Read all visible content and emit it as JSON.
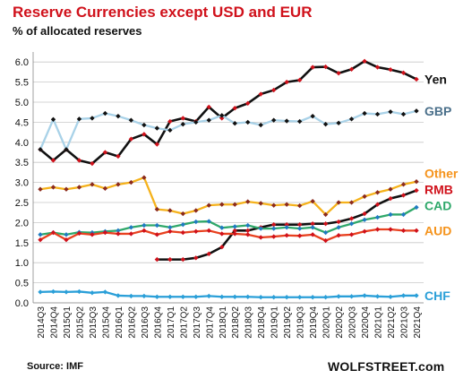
{
  "chart_data": {
    "type": "line",
    "title": "Reserve Currencies except USD and EUR",
    "subtitle": "% of allocated reserves",
    "source": "Source: IMF",
    "brand": "WOLFSTREET.com",
    "ylim": [
      0,
      6.25
    ],
    "yticks": [
      "0.0",
      "0.5",
      "1.0",
      "1.5",
      "2.0",
      "2.5",
      "3.0",
      "3.5",
      "4.0",
      "4.5",
      "5.0",
      "5.5",
      "6.0"
    ],
    "grid": true,
    "x": [
      "2014Q3",
      "2014Q4",
      "2015Q1",
      "2015Q2",
      "2015Q3",
      "2015Q4",
      "2016Q1",
      "2016Q2",
      "2016Q3",
      "2016Q4",
      "2017Q1",
      "2017Q2",
      "2017Q3",
      "2017Q4",
      "2018Q1",
      "2018Q2",
      "2018Q3",
      "2018Q4",
      "2019Q1",
      "2019Q2",
      "2019Q3",
      "2019Q4",
      "2020Q1",
      "2020Q2",
      "2020Q3",
      "2020Q4",
      "2021Q1",
      "2021Q2",
      "2021Q3",
      "2021Q4"
    ],
    "series": [
      {
        "name": "Yen",
        "color": "#111111",
        "marker": "#d0111b",
        "values": [
          3.82,
          3.55,
          3.82,
          3.55,
          3.47,
          3.75,
          3.65,
          4.08,
          4.2,
          3.95,
          4.52,
          4.6,
          4.52,
          4.88,
          4.6,
          4.85,
          4.97,
          5.2,
          5.3,
          5.5,
          5.55,
          5.87,
          5.88,
          5.72,
          5.82,
          6.02,
          5.87,
          5.81,
          5.73,
          5.57
        ]
      },
      {
        "name": "GBP",
        "color": "#a9d2e8",
        "marker": "#111111",
        "values": [
          3.82,
          4.57,
          3.82,
          4.58,
          4.6,
          4.72,
          4.65,
          4.55,
          4.43,
          4.35,
          4.3,
          4.45,
          4.5,
          4.55,
          4.67,
          4.47,
          4.5,
          4.43,
          4.55,
          4.53,
          4.52,
          4.65,
          4.45,
          4.48,
          4.58,
          4.72,
          4.7,
          4.76,
          4.7,
          4.78
        ]
      },
      {
        "name": "Other",
        "color": "#f5b21b",
        "marker": "#8b2a1c",
        "values": [
          2.83,
          2.88,
          2.83,
          2.88,
          2.95,
          2.85,
          2.95,
          3.0,
          3.12,
          2.33,
          2.3,
          2.22,
          2.3,
          2.43,
          2.45,
          2.45,
          2.52,
          2.48,
          2.43,
          2.45,
          2.42,
          2.53,
          2.2,
          2.5,
          2.5,
          2.65,
          2.75,
          2.83,
          2.95,
          3.02
        ]
      },
      {
        "name": "RMB",
        "color": "#111111",
        "marker": "#d0111b",
        "values": [
          null,
          null,
          null,
          null,
          null,
          null,
          null,
          null,
          null,
          1.08,
          1.08,
          1.08,
          1.12,
          1.22,
          1.39,
          1.8,
          1.8,
          1.88,
          1.95,
          1.95,
          1.95,
          1.97,
          1.97,
          2.02,
          2.1,
          2.22,
          2.45,
          2.6,
          2.68,
          2.8
        ]
      },
      {
        "name": "CAD",
        "color": "#2fa86a",
        "marker": "#1f7bc1",
        "values": [
          1.7,
          1.75,
          1.7,
          1.76,
          1.75,
          1.78,
          1.8,
          1.88,
          1.93,
          1.93,
          1.88,
          1.95,
          2.02,
          2.03,
          1.87,
          1.9,
          1.93,
          1.85,
          1.85,
          1.88,
          1.85,
          1.88,
          1.75,
          1.88,
          1.97,
          2.07,
          2.13,
          2.2,
          2.2,
          2.38
        ]
      },
      {
        "name": "AUD",
        "color": "#e8411f",
        "marker": "#d0111b",
        "values": [
          1.57,
          1.75,
          1.57,
          1.73,
          1.7,
          1.75,
          1.72,
          1.72,
          1.8,
          1.7,
          1.78,
          1.75,
          1.78,
          1.8,
          1.72,
          1.72,
          1.7,
          1.63,
          1.65,
          1.68,
          1.67,
          1.7,
          1.55,
          1.68,
          1.7,
          1.78,
          1.83,
          1.83,
          1.8,
          1.8
        ]
      },
      {
        "name": "CHF",
        "color": "#2a9fd8",
        "marker": "#2a9fd8",
        "values": [
          0.27,
          0.28,
          0.27,
          0.28,
          0.25,
          0.27,
          0.18,
          0.17,
          0.17,
          0.15,
          0.15,
          0.15,
          0.15,
          0.17,
          0.15,
          0.15,
          0.15,
          0.14,
          0.14,
          0.14,
          0.14,
          0.14,
          0.14,
          0.16,
          0.16,
          0.18,
          0.16,
          0.15,
          0.18,
          0.18
        ]
      }
    ],
    "labels": [
      {
        "text": "Yen",
        "color": "#111111",
        "series": "Yen"
      },
      {
        "text": "GBP",
        "color": "#4a6f8a",
        "series": "GBP"
      },
      {
        "text": "Other",
        "color": "#f5931b",
        "series": "Other"
      },
      {
        "text": "RMB",
        "color": "#d0111b",
        "series": "RMB"
      },
      {
        "text": "CAD",
        "color": "#2fa86a",
        "series": "CAD"
      },
      {
        "text": "AUD",
        "color": "#f5931b",
        "series": "AUD"
      },
      {
        "text": "CHF",
        "color": "#2a9fd8",
        "series": "CHF"
      }
    ]
  }
}
